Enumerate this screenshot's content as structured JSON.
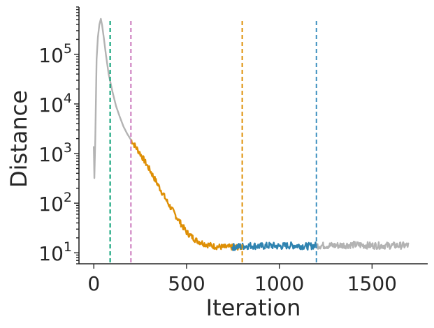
{
  "chart_data": {
    "type": "line",
    "title": "",
    "xlabel": "Iteration",
    "ylabel": "Distance",
    "xlim": [
      -80,
      1800
    ],
    "ylim": [
      6,
      900000
    ],
    "yscale": "log",
    "grid": false,
    "xticks": [
      0,
      500,
      1000,
      1500
    ],
    "xtick_labels": [
      "0",
      "500",
      "1000",
      "1500"
    ],
    "yticks": [
      10,
      100,
      1000,
      10000,
      100000
    ],
    "ytick_labels": [
      {
        "base": "10",
        "exp": "1"
      },
      {
        "base": "10",
        "exp": "2"
      },
      {
        "base": "10",
        "exp": "3"
      },
      {
        "base": "10",
        "exp": "4"
      },
      {
        "base": "10",
        "exp": "5"
      }
    ],
    "vlines": [
      {
        "x": 88,
        "color": "#029e73"
      },
      {
        "x": 200,
        "color": "#cc78bc"
      },
      {
        "x": 800,
        "color": "#de8f05"
      },
      {
        "x": 1200,
        "color": "#3d8fbf"
      }
    ],
    "series": [
      {
        "color": "#b3b3b3",
        "noise": 0.0,
        "points": [
          [
            0,
            1400
          ],
          [
            3,
            320
          ],
          [
            8,
            2000
          ],
          [
            15,
            80000
          ],
          [
            22,
            220000
          ],
          [
            30,
            400000
          ],
          [
            38,
            520000
          ],
          [
            45,
            380000
          ],
          [
            55,
            200000
          ],
          [
            65,
            100000
          ],
          [
            80,
            40000
          ],
          [
            100,
            18000
          ],
          [
            120,
            9000
          ],
          [
            140,
            5500
          ],
          [
            160,
            3500
          ],
          [
            180,
            2500
          ],
          [
            200,
            1900
          ]
        ]
      },
      {
        "color": "#de8f05",
        "noise": 0.06,
        "points": [
          [
            200,
            1900
          ],
          [
            250,
            1000
          ],
          [
            300,
            480
          ],
          [
            350,
            220
          ],
          [
            400,
            100
          ],
          [
            450,
            50
          ],
          [
            500,
            26
          ],
          [
            550,
            18
          ],
          [
            600,
            15
          ],
          [
            650,
            13.5
          ],
          [
            700,
            13
          ],
          [
            750,
            13
          ],
          [
            800,
            13
          ]
        ]
      },
      {
        "color": "#2f83b0",
        "noise": 0.07,
        "points": [
          [
            745,
            13
          ],
          [
            800,
            13.5
          ],
          [
            850,
            14
          ],
          [
            900,
            13.5
          ],
          [
            950,
            14
          ],
          [
            1000,
            13.5
          ],
          [
            1050,
            14
          ],
          [
            1100,
            14
          ],
          [
            1150,
            13.5
          ],
          [
            1200,
            14
          ]
        ]
      },
      {
        "color": "#b3b3b3",
        "noise": 0.07,
        "points": [
          [
            1200,
            14
          ],
          [
            1300,
            14
          ],
          [
            1400,
            14.5
          ],
          [
            1500,
            14
          ],
          [
            1600,
            14
          ],
          [
            1700,
            14
          ]
        ]
      }
    ]
  }
}
